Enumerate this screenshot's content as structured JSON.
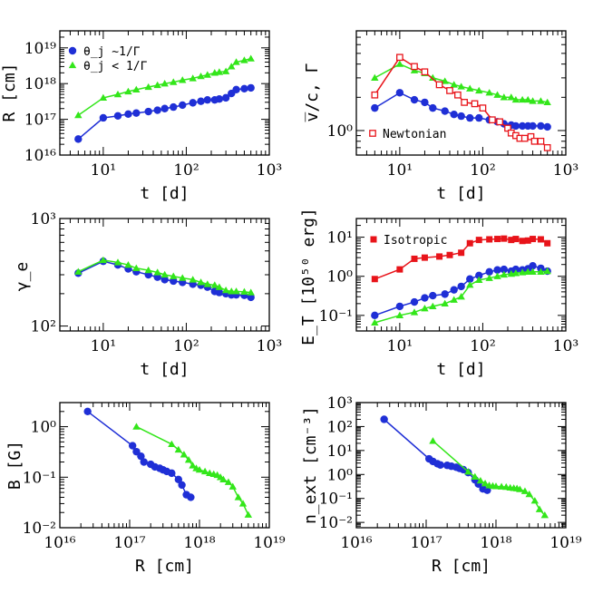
{
  "colors": {
    "blue": "#1f2fd6",
    "green": "#33e61a",
    "red": "#e8141a",
    "axis": "#000000"
  },
  "chart_data": [
    {
      "id": "R_t",
      "type": "line",
      "xlabel": "t [d]",
      "ylabel": "R [cm]",
      "xscale": "log",
      "yscale": "log",
      "xlim": [
        3,
        1000
      ],
      "ylim": [
        1e+16,
        3e+19
      ],
      "xtick_labels": [
        "10¹",
        "10²",
        "10³"
      ],
      "ytick_labels": [
        "10¹⁶",
        "10¹⁷",
        "10¹⁸",
        "10¹⁹"
      ],
      "legend_position": "top-left",
      "series": [
        {
          "name": "θ_j ∼1/Γ",
          "color": "blue",
          "marker": "circle",
          "x": [
            5,
            10,
            15,
            20,
            25,
            35,
            45,
            55,
            70,
            90,
            120,
            150,
            180,
            220,
            250,
            300,
            350,
            400,
            500,
            600
          ],
          "y": [
            2.8e+16,
            1.1e+17,
            1.25e+17,
            1.4e+17,
            1.5e+17,
            1.65e+17,
            1.8e+17,
            2e+17,
            2.2e+17,
            2.5e+17,
            2.9e+17,
            3.2e+17,
            3.5e+17,
            3.5e+17,
            3.7e+17,
            4e+17,
            5.3e+17,
            6.8e+17,
            7.2e+17,
            7.6e+17
          ]
        },
        {
          "name": "θ_j < 1/Γ",
          "color": "green",
          "marker": "triangle",
          "x": [
            5,
            10,
            15,
            20,
            25,
            35,
            45,
            55,
            70,
            90,
            120,
            150,
            180,
            220,
            250,
            300,
            350,
            400,
            500,
            600
          ],
          "y": [
            1.3e+17,
            4e+17,
            5e+17,
            6e+17,
            6.8e+17,
            8e+17,
            9e+17,
            1e+18,
            1.1e+18,
            1.25e+18,
            1.4e+18,
            1.6e+18,
            1.75e+18,
            2e+18,
            2.1e+18,
            2.2e+18,
            3e+18,
            4e+18,
            4.5e+18,
            5e+18
          ]
        }
      ]
    },
    {
      "id": "v_t",
      "type": "line",
      "xlabel": "t [d]",
      "ylabel": "v̅/c, Γ",
      "xscale": "log",
      "yscale": "log",
      "xlim": [
        3,
        1000
      ],
      "ylim": [
        0.6,
        8
      ],
      "xtick_labels": [
        "10¹",
        "10²",
        "10³"
      ],
      "ytick_labels": [
        "10⁰"
      ],
      "legend_position": "bottom-left",
      "series": [
        {
          "name": "",
          "color": "blue",
          "marker": "circle",
          "x": [
            5,
            10,
            15,
            20,
            25,
            35,
            45,
            55,
            70,
            90,
            120,
            150,
            180,
            220,
            250,
            300,
            350,
            400,
            500,
            600
          ],
          "y": [
            1.6,
            2.2,
            1.9,
            1.8,
            1.6,
            1.5,
            1.4,
            1.35,
            1.3,
            1.3,
            1.25,
            1.2,
            1.15,
            1.12,
            1.1,
            1.1,
            1.1,
            1.1,
            1.1,
            1.08
          ]
        },
        {
          "name": "",
          "color": "green",
          "marker": "triangle",
          "x": [
            5,
            10,
            15,
            20,
            25,
            35,
            45,
            55,
            70,
            90,
            120,
            150,
            180,
            220,
            250,
            300,
            350,
            400,
            500,
            600
          ],
          "y": [
            3.0,
            4.0,
            3.5,
            3.3,
            3.0,
            2.8,
            2.6,
            2.5,
            2.4,
            2.3,
            2.2,
            2.1,
            2.0,
            2.0,
            1.9,
            1.9,
            1.9,
            1.85,
            1.85,
            1.8
          ]
        },
        {
          "name": "Newtonian",
          "color": "red",
          "marker": "open-square",
          "x": [
            5,
            10,
            15,
            20,
            30,
            40,
            50,
            60,
            80,
            100,
            130,
            160,
            200,
            220,
            250,
            280,
            320,
            380,
            420,
            500,
            600
          ],
          "y": [
            2.1,
            4.6,
            3.8,
            3.4,
            2.6,
            2.3,
            2.1,
            1.8,
            1.75,
            1.6,
            1.25,
            1.2,
            1.05,
            0.95,
            0.9,
            0.85,
            0.85,
            0.88,
            0.8,
            0.8,
            0.7
          ]
        }
      ]
    },
    {
      "id": "gamma_t",
      "type": "line",
      "xlabel": "t [d]",
      "ylabel": "γ_e",
      "xscale": "log",
      "yscale": "log",
      "xlim": [
        3,
        1000
      ],
      "ylim": [
        90,
        1000
      ],
      "xtick_labels": [
        "10¹",
        "10²",
        "10³"
      ],
      "ytick_labels": [
        "10²",
        "10³"
      ],
      "series": [
        {
          "name": "",
          "color": "blue",
          "marker": "circle",
          "x": [
            5,
            10,
            15,
            20,
            25,
            35,
            45,
            55,
            70,
            90,
            120,
            150,
            180,
            220,
            250,
            300,
            350,
            400,
            500,
            600
          ],
          "y": [
            310,
            400,
            370,
            340,
            320,
            300,
            285,
            270,
            262,
            255,
            245,
            240,
            230,
            210,
            205,
            200,
            195,
            195,
            193,
            185
          ]
        },
        {
          "name": "",
          "color": "green",
          "marker": "triangle",
          "x": [
            5,
            10,
            15,
            20,
            25,
            35,
            45,
            55,
            70,
            90,
            120,
            150,
            180,
            220,
            250,
            300,
            350,
            400,
            500,
            600
          ],
          "y": [
            320,
            410,
            390,
            370,
            345,
            330,
            315,
            300,
            290,
            280,
            270,
            255,
            245,
            240,
            230,
            215,
            210,
            210,
            208,
            205
          ]
        }
      ]
    },
    {
      "id": "E_t",
      "type": "line",
      "xlabel": "t [d]",
      "ylabel": "E_T [10⁵⁰ erg]",
      "xscale": "log",
      "yscale": "log",
      "xlim": [
        3,
        1000
      ],
      "ylim": [
        0.04,
        30
      ],
      "xtick_labels": [
        "10¹",
        "10²",
        "10³"
      ],
      "ytick_labels": [
        "10⁻¹",
        "10⁰",
        "10¹"
      ],
      "legend_position": "top-left",
      "series": [
        {
          "name": "Isotropic",
          "color": "red",
          "marker": "square",
          "x": [
            5,
            10,
            15,
            20,
            30,
            40,
            55,
            70,
            90,
            120,
            150,
            180,
            220,
            250,
            300,
            350,
            400,
            500,
            600
          ],
          "y": [
            0.85,
            1.5,
            2.8,
            3.0,
            3.2,
            3.5,
            4.0,
            7.0,
            8.5,
            8.8,
            9.0,
            9.2,
            8.5,
            9.0,
            8.0,
            8.2,
            9.0,
            8.8,
            7.0
          ]
        },
        {
          "name": "",
          "color": "blue",
          "marker": "circle",
          "x": [
            5,
            10,
            15,
            20,
            25,
            35,
            45,
            55,
            70,
            90,
            120,
            150,
            180,
            220,
            250,
            300,
            350,
            400,
            500,
            600
          ],
          "y": [
            0.1,
            0.17,
            0.22,
            0.28,
            0.32,
            0.35,
            0.45,
            0.55,
            0.85,
            1.05,
            1.3,
            1.45,
            1.5,
            1.35,
            1.5,
            1.45,
            1.55,
            1.85,
            1.6,
            1.35
          ]
        },
        {
          "name": "",
          "color": "green",
          "marker": "triangle",
          "x": [
            5,
            10,
            15,
            20,
            25,
            35,
            45,
            55,
            70,
            90,
            120,
            150,
            180,
            220,
            250,
            300,
            350,
            400,
            500,
            600
          ],
          "y": [
            0.065,
            0.1,
            0.12,
            0.15,
            0.17,
            0.2,
            0.25,
            0.3,
            0.6,
            0.8,
            0.9,
            1.0,
            1.1,
            1.15,
            1.2,
            1.25,
            1.3,
            1.3,
            1.3,
            1.35
          ]
        }
      ]
    },
    {
      "id": "B_R",
      "type": "line",
      "xlabel": "R [cm]",
      "ylabel": "B [G]",
      "xscale": "log",
      "yscale": "log",
      "xlim": [
        1e+16,
        1e+19
      ],
      "ylim": [
        0.01,
        3
      ],
      "xtick_labels": [
        "10¹⁶",
        "10¹⁷",
        "10¹⁸",
        "10¹⁹"
      ],
      "ytick_labels": [
        "10⁻²",
        "10⁻¹",
        "10⁰"
      ],
      "series": [
        {
          "name": "",
          "color": "blue",
          "marker": "circle",
          "x": [
            2.5e+16,
            1.1e+17,
            1.25e+17,
            1.45e+17,
            1.6e+17,
            2e+17,
            2.3e+17,
            2.7e+17,
            3e+17,
            3.4e+17,
            4e+17,
            5e+17,
            5.6e+17,
            6.5e+17,
            7.5e+17
          ],
          "y": [
            2.0,
            0.42,
            0.32,
            0.26,
            0.2,
            0.18,
            0.16,
            0.15,
            0.14,
            0.13,
            0.12,
            0.09,
            0.07,
            0.045,
            0.04
          ]
        },
        {
          "name": "",
          "color": "green",
          "marker": "triangle",
          "x": [
            1.25e+17,
            4e+17,
            5e+17,
            6e+17,
            7e+17,
            8e+17,
            9e+17,
            1e+18,
            1.2e+18,
            1.4e+18,
            1.6e+18,
            1.8e+18,
            2e+18,
            2.2e+18,
            2.6e+18,
            3e+18,
            3.6e+18,
            4.2e+18,
            5e+18
          ],
          "y": [
            1.0,
            0.45,
            0.35,
            0.28,
            0.22,
            0.17,
            0.15,
            0.14,
            0.13,
            0.12,
            0.115,
            0.11,
            0.1,
            0.09,
            0.08,
            0.065,
            0.04,
            0.03,
            0.018
          ]
        }
      ]
    },
    {
      "id": "n_R",
      "type": "line",
      "xlabel": "R [cm]",
      "ylabel": "n_ext [cm⁻³]",
      "xscale": "log",
      "yscale": "log",
      "xlim": [
        1e+16,
        1e+19
      ],
      "ylim": [
        0.006,
        1000
      ],
      "xtick_labels": [
        "10¹⁶",
        "10¹⁷",
        "10¹⁸",
        "10¹⁹"
      ],
      "ytick_labels": [
        "10⁻²",
        "10⁻¹",
        "10⁰",
        "10¹",
        "10²",
        "10³"
      ],
      "series": [
        {
          "name": "",
          "color": "blue",
          "marker": "circle",
          "x": [
            2.5e+16,
            1.1e+17,
            1.25e+17,
            1.45e+17,
            1.6e+17,
            2e+17,
            2.3e+17,
            2.7e+17,
            3e+17,
            3.4e+17,
            4e+17,
            5e+17,
            5.6e+17,
            6.5e+17,
            7.5e+17
          ],
          "y": [
            200,
            4.5,
            3.5,
            2.8,
            2.5,
            2.4,
            2.2,
            2.0,
            1.8,
            1.6,
            1.2,
            0.6,
            0.4,
            0.25,
            0.22
          ]
        },
        {
          "name": "",
          "color": "green",
          "marker": "triangle",
          "x": [
            1.25e+17,
            4e+17,
            5e+17,
            6e+17,
            7e+17,
            8e+17,
            9e+17,
            1e+18,
            1.2e+18,
            1.4e+18,
            1.6e+18,
            1.8e+18,
            2e+18,
            2.2e+18,
            2.6e+18,
            3e+18,
            3.6e+18,
            4.2e+18,
            5e+18
          ],
          "y": [
            25,
            1.3,
            0.8,
            0.55,
            0.42,
            0.35,
            0.33,
            0.32,
            0.31,
            0.3,
            0.28,
            0.27,
            0.26,
            0.24,
            0.2,
            0.15,
            0.08,
            0.035,
            0.02
          ]
        }
      ]
    }
  ]
}
